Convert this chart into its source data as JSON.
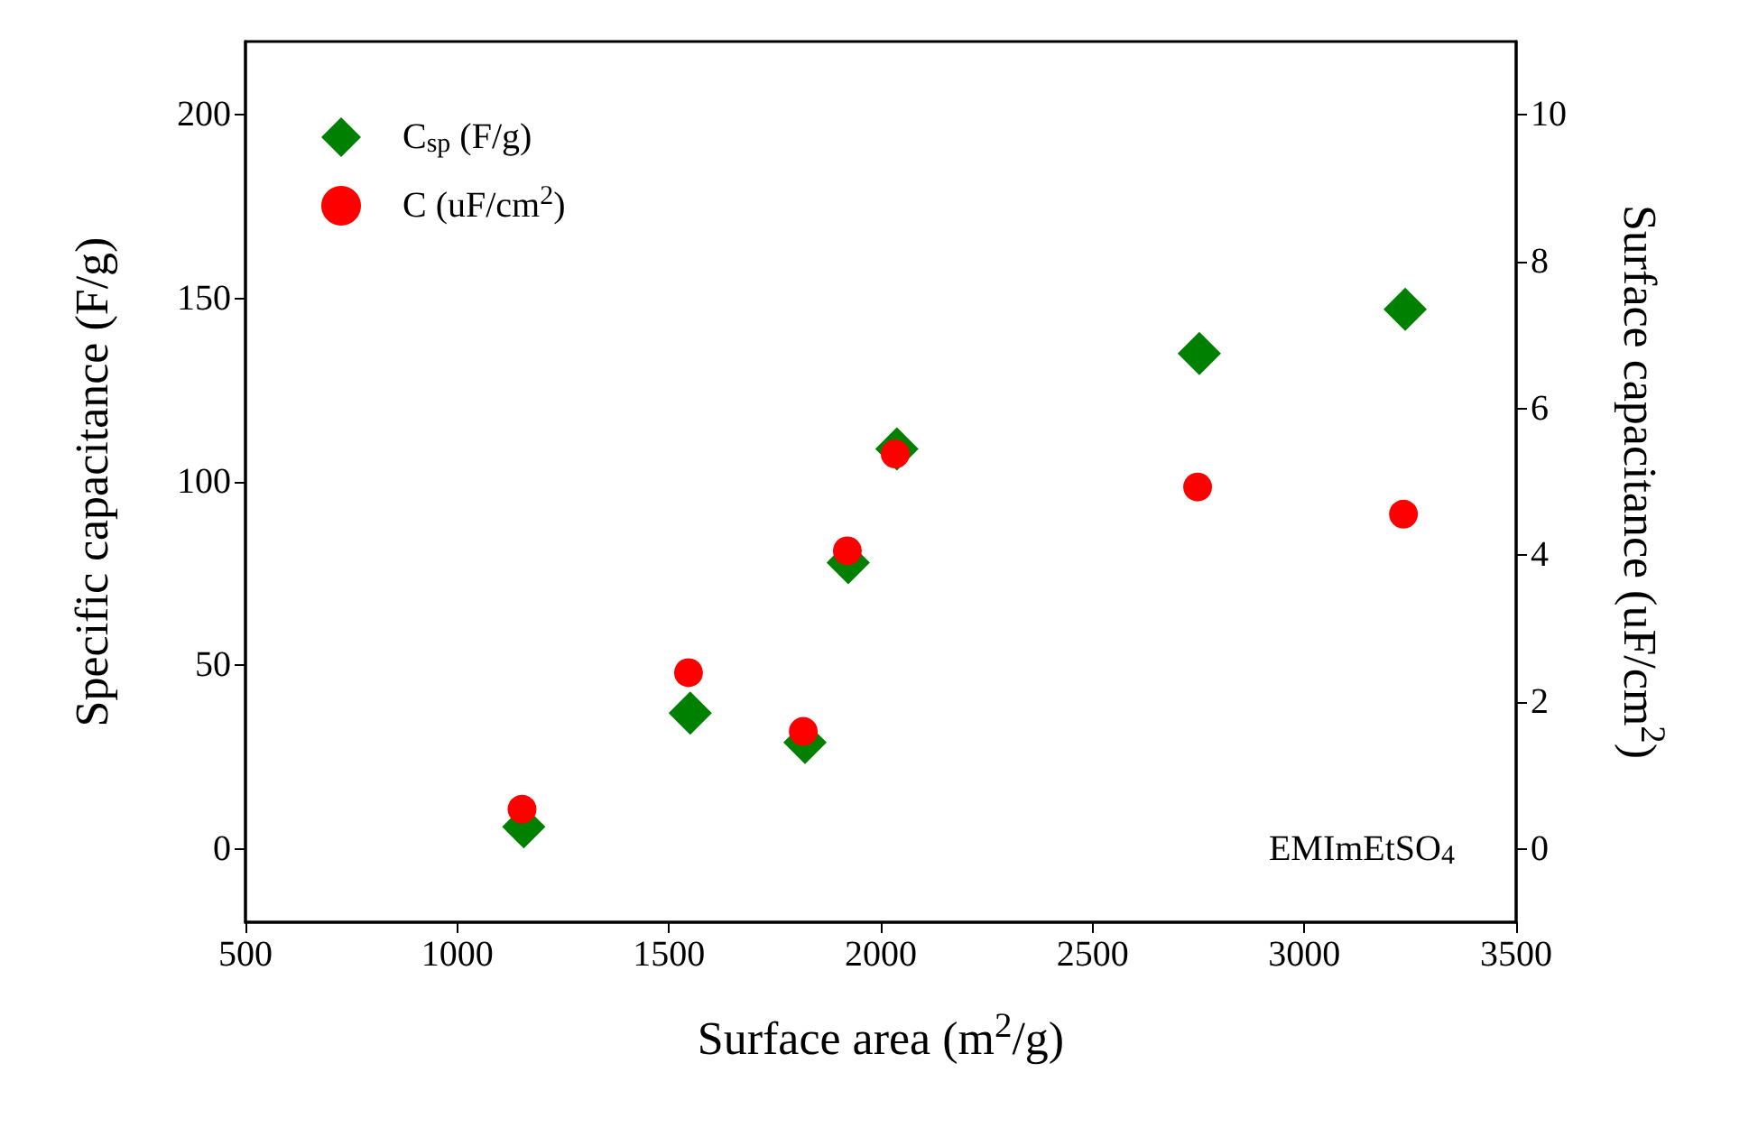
{
  "chart_data": {
    "type": "scatter",
    "xlabel": "Surface area (m$^{2}$/g)",
    "ylabel": "Specific capacitance (F/g)",
    "y2label": "Surface capacitance (uF/cm$^{2}$)",
    "annotations": [
      "EMImEtSO$_{4}$"
    ],
    "xlim": [
      500,
      3500
    ],
    "xticks": [
      500,
      1000,
      1500,
      2000,
      2500,
      3000,
      3500
    ],
    "ylim": [
      -20,
      220
    ],
    "yticks": [
      0,
      50,
      100,
      150,
      200
    ],
    "y2lim": [
      -1,
      11
    ],
    "y2ticks": [
      0,
      2,
      4,
      6,
      8,
      10
    ],
    "grid": false,
    "legend": "top left",
    "series": [
      {
        "name": "C$_{sp}$ (F/g)",
        "color": "#008000",
        "marker": "diamond",
        "x": [
          1157,
          1550,
          1821,
          1923,
          2038,
          2752,
          3238
        ],
        "values": [
          6,
          37,
          29,
          78,
          109,
          135,
          147
        ]
      },
      {
        "name": "C (uF/cm$^{2}$)",
        "color": "#ff0000",
        "marker": "circle",
        "axis": "y2",
        "x": [
          1153,
          1546,
          1817,
          1921,
          2034,
          2748,
          3234
        ],
        "values": [
          0.54,
          2.4,
          1.6,
          4.06,
          5.38,
          4.93,
          4.56
        ]
      }
    ]
  }
}
